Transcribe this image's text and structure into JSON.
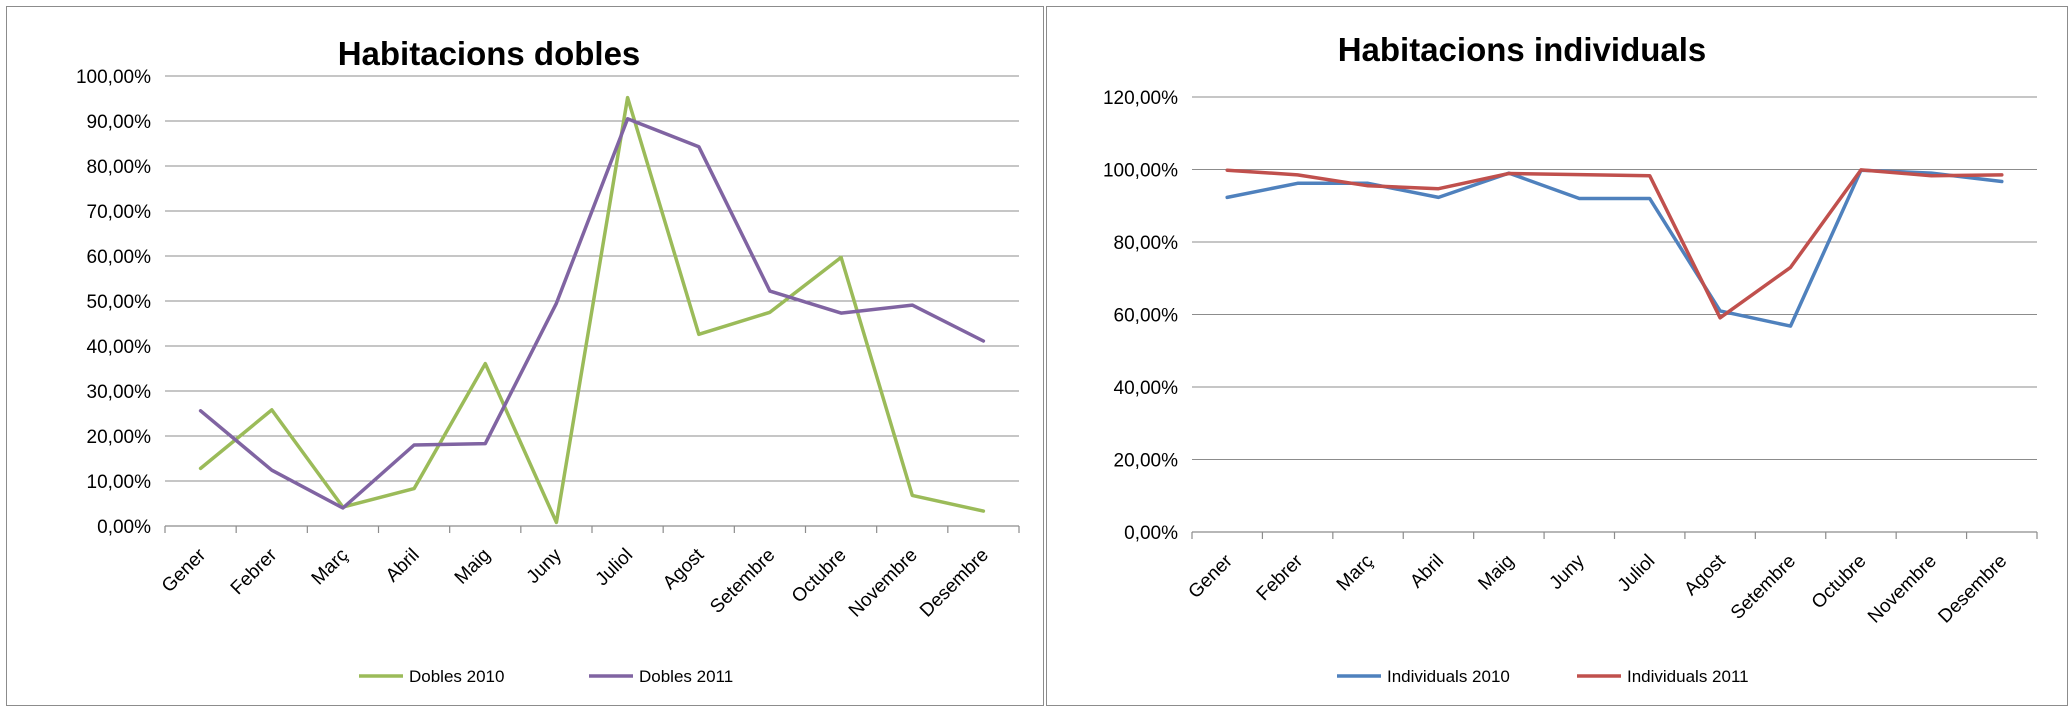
{
  "chart_data": [
    {
      "type": "line",
      "title": "Habitacions dobles",
      "categories": [
        "Gener",
        "Febrer",
        "Març",
        "Abril",
        "Maig",
        "Juny",
        "Juliol",
        "Agost",
        "Setembre",
        "Octubre",
        "Novembre",
        "Desembre"
      ],
      "yticks": [
        "0,00%",
        "10,00%",
        "20,00%",
        "30,00%",
        "40,00%",
        "50,00%",
        "60,00%",
        "70,00%",
        "80,00%",
        "90,00%",
        "100,00%"
      ],
      "ylim": [
        0,
        100
      ],
      "grid": true,
      "legend_position": "bottom",
      "series": [
        {
          "name": "Dobles 2010",
          "color": "#9bbb59",
          "values": [
            12.8,
            25.8,
            4.2,
            8.3,
            36.1,
            0.8,
            95.2,
            42.6,
            47.5,
            59.7,
            6.8,
            3.3
          ]
        },
        {
          "name": "Dobles 2011",
          "color": "#8064a2",
          "values": [
            25.6,
            12.4,
            4.0,
            18.0,
            18.3,
            49.5,
            90.5,
            84.3,
            52.2,
            47.3,
            49.1,
            41.1
          ]
        }
      ]
    },
    {
      "type": "line",
      "title": "Habitacions individuals",
      "categories": [
        "Gener",
        "Febrer",
        "Març",
        "Abril",
        "Maig",
        "Juny",
        "Juliol",
        "Agost",
        "Setembre",
        "Octubre",
        "Novembre",
        "Desembre"
      ],
      "yticks": [
        "0,00%",
        "20,00%",
        "40,00%",
        "60,00%",
        "80,00%",
        "100,00%",
        "120,00%"
      ],
      "ylim": [
        0,
        120
      ],
      "grid": true,
      "legend_position": "bottom",
      "series": [
        {
          "name": "Individuals 2010",
          "color": "#4f81bd",
          "values": [
            92.3,
            96.2,
            96.2,
            92.3,
            99.0,
            92.0,
            92.0,
            61.0,
            56.8,
            99.8,
            99.0,
            96.7
          ]
        },
        {
          "name": "Individuals 2011",
          "color": "#c0504d",
          "values": [
            99.8,
            98.5,
            95.5,
            94.7,
            98.9,
            98.6,
            98.3,
            59.1,
            73.0,
            99.9,
            98.3,
            98.5
          ]
        }
      ]
    }
  ]
}
